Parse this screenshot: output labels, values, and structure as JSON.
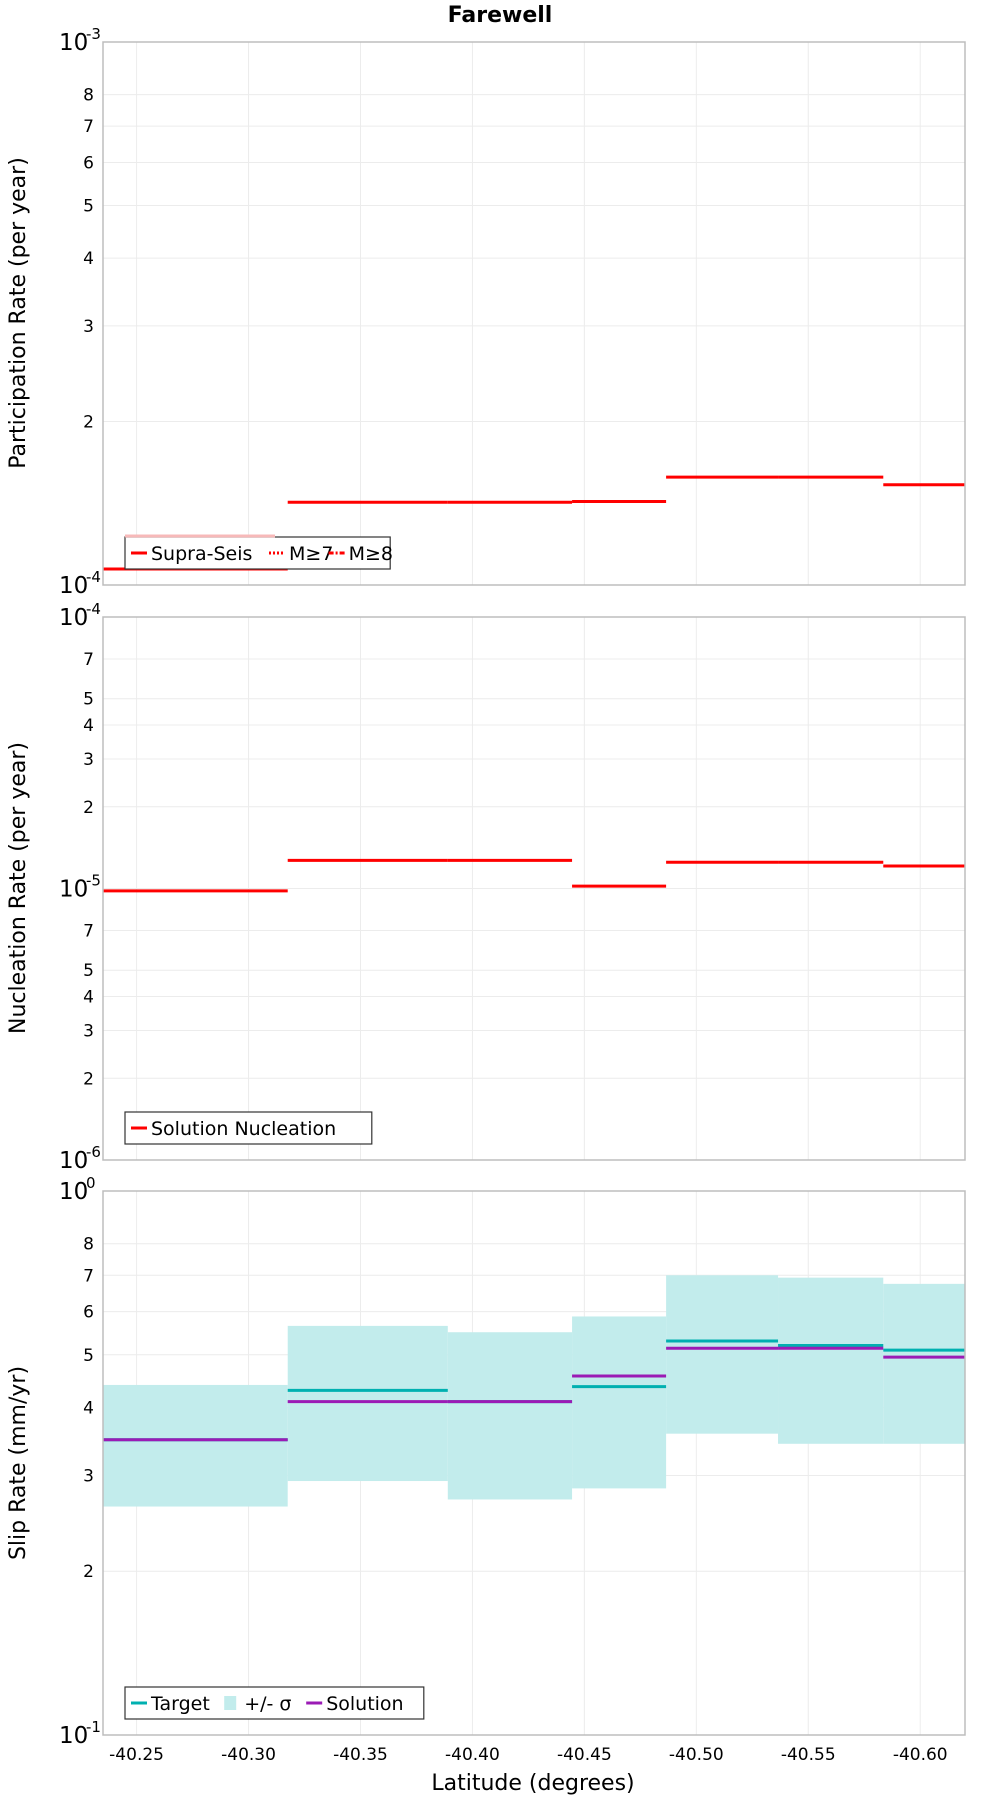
{
  "title": "Farewell",
  "xlabel": "Latitude (degrees)",
  "x_ticks": [
    {
      "value": -40.25,
      "label": "-40.25"
    },
    {
      "value": -40.3,
      "label": "-40.30"
    },
    {
      "value": -40.35,
      "label": "-40.35"
    },
    {
      "value": -40.4,
      "label": "-40.40"
    },
    {
      "value": -40.45,
      "label": "-40.45"
    },
    {
      "value": -40.5,
      "label": "-40.50"
    },
    {
      "value": -40.55,
      "label": "-40.55"
    },
    {
      "value": -40.6,
      "label": "-40.60"
    }
  ],
  "colors": {
    "red": "#ff0000",
    "target": "#00b0b0",
    "band": "#c2ecec",
    "solution": "#9b1bb5",
    "supra_legend": "#f7b9b9"
  },
  "chart_data": [
    {
      "type": "line",
      "step": true,
      "title": "Farewell",
      "ylabel": "Participation Rate (per year)",
      "xlabel": "",
      "y_scale": "log",
      "xlim": [
        -40.235,
        -40.62
      ],
      "ylim": [
        0.0001,
        0.001
      ],
      "minor_ticks": [
        2,
        3,
        4,
        5,
        6,
        7,
        8
      ],
      "grid": true,
      "legend": {
        "position": "bottom-left",
        "entries": [
          "Supra-Seis",
          "M≥7",
          "M≥8"
        ]
      },
      "series": [
        {
          "name": "Supra-Seis",
          "color": "#ff0000",
          "segments": [
            {
              "x0": -40.235,
              "x1": -40.3175,
              "y": 0.000107
            },
            {
              "x0": -40.3175,
              "x1": -40.389,
              "y": 0.000142
            },
            {
              "x0": -40.389,
              "x1": -40.4445,
              "y": 0.000142
            },
            {
              "x0": -40.4445,
              "x1": -40.4865,
              "y": 0.0001425
            },
            {
              "x0": -40.4865,
              "x1": -40.5365,
              "y": 0.000158
            },
            {
              "x0": -40.5365,
              "x1": -40.5835,
              "y": 0.000158
            },
            {
              "x0": -40.5835,
              "x1": -40.62,
              "y": 0.000153
            }
          ]
        }
      ]
    },
    {
      "type": "line",
      "step": true,
      "ylabel": "Nucleation Rate (per year)",
      "xlabel": "",
      "y_scale": "log",
      "xlim": [
        -40.235,
        -40.62
      ],
      "ylim": [
        1e-06,
        0.0001
      ],
      "minor_ticks": [
        2,
        3,
        4,
        5,
        7
      ],
      "grid": true,
      "legend": {
        "position": "bottom-left",
        "entries": [
          "Solution Nucleation"
        ]
      },
      "series": [
        {
          "name": "Solution Nucleation",
          "color": "#ff0000",
          "segments": [
            {
              "x0": -40.235,
              "x1": -40.3175,
              "y": 9.8e-06
            },
            {
              "x0": -40.3175,
              "x1": -40.389,
              "y": 1.27e-05
            },
            {
              "x0": -40.389,
              "x1": -40.4445,
              "y": 1.27e-05
            },
            {
              "x0": -40.4445,
              "x1": -40.4865,
              "y": 1.02e-05
            },
            {
              "x0": -40.4865,
              "x1": -40.5365,
              "y": 1.25e-05
            },
            {
              "x0": -40.5365,
              "x1": -40.5835,
              "y": 1.25e-05
            },
            {
              "x0": -40.5835,
              "x1": -40.62,
              "y": 1.21e-05
            }
          ]
        }
      ]
    },
    {
      "type": "line",
      "step": true,
      "ylabel": "Slip Rate (mm/yr)",
      "xlabel": "Latitude (degrees)",
      "y_scale": "log",
      "xlim": [
        -40.235,
        -40.62
      ],
      "ylim": [
        0.1,
        1
      ],
      "minor_ticks": [
        2,
        3,
        4,
        5,
        6,
        7,
        8
      ],
      "grid": true,
      "legend": {
        "position": "bottom-left",
        "entries": [
          "Target",
          "+/- σ",
          "Solution"
        ]
      },
      "band": {
        "name": "+/- σ",
        "color": "#c2ecec",
        "segments": [
          {
            "x0": -40.235,
            "x1": -40.3175,
            "low": 0.263,
            "high": 0.44
          },
          {
            "x0": -40.3175,
            "x1": -40.389,
            "low": 0.293,
            "high": 0.565
          },
          {
            "x0": -40.389,
            "x1": -40.4445,
            "low": 0.271,
            "high": 0.55
          },
          {
            "x0": -40.4445,
            "x1": -40.4865,
            "low": 0.284,
            "high": 0.588
          },
          {
            "x0": -40.4865,
            "x1": -40.5365,
            "low": 0.358,
            "high": 0.7
          },
          {
            "x0": -40.5365,
            "x1": -40.5835,
            "low": 0.343,
            "high": 0.693
          },
          {
            "x0": -40.5835,
            "x1": -40.62,
            "low": 0.343,
            "high": 0.675
          }
        ]
      },
      "series": [
        {
          "name": "Target",
          "color": "#00b0b0",
          "segments": [
            {
              "x0": -40.235,
              "x1": -40.3175,
              "y": 0.349
            },
            {
              "x0": -40.3175,
              "x1": -40.389,
              "y": 0.43
            },
            {
              "x0": -40.389,
              "x1": -40.4445,
              "y": 0.41
            },
            {
              "x0": -40.4445,
              "x1": -40.4865,
              "y": 0.437
            },
            {
              "x0": -40.4865,
              "x1": -40.5365,
              "y": 0.53
            },
            {
              "x0": -40.5365,
              "x1": -40.5835,
              "y": 0.52
            },
            {
              "x0": -40.5835,
              "x1": -40.62,
              "y": 0.51
            }
          ]
        },
        {
          "name": "Solution",
          "color": "#9b1bb5",
          "segments": [
            {
              "x0": -40.235,
              "x1": -40.3175,
              "y": 0.349
            },
            {
              "x0": -40.3175,
              "x1": -40.389,
              "y": 0.41
            },
            {
              "x0": -40.389,
              "x1": -40.4445,
              "y": 0.41
            },
            {
              "x0": -40.4445,
              "x1": -40.4865,
              "y": 0.457
            },
            {
              "x0": -40.4865,
              "x1": -40.5365,
              "y": 0.514
            },
            {
              "x0": -40.5365,
              "x1": -40.5835,
              "y": 0.514
            },
            {
              "x0": -40.5835,
              "x1": -40.62,
              "y": 0.495
            }
          ]
        }
      ]
    }
  ]
}
